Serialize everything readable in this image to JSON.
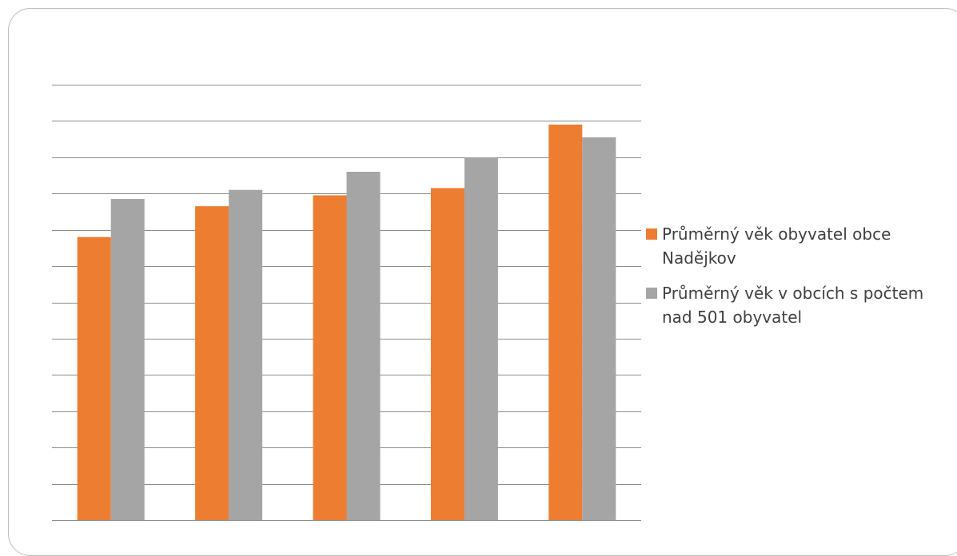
{
  "colors": {
    "series_1": "#ED7D31",
    "series_2": "#A5A5A5",
    "gridline": "#8c8c8c",
    "frame": "#bdbdbd"
  },
  "legend": {
    "placement": "right",
    "items": [
      {
        "label": "Průměrný věk obyvatel obce Nadějkov",
        "color": "#ED7D31"
      },
      {
        "label": "Průměrný věk v obcích s počtem nad 501 obyvatel",
        "color": "#A5A5A5"
      }
    ]
  },
  "chart_data": {
    "type": "bar",
    "title": "",
    "xlabel": "",
    "ylabel": "",
    "ylim": [
      0,
      12
    ],
    "grid": true,
    "gridline_count": 12,
    "categories": [
      "",
      "",
      "",
      "",
      ""
    ],
    "series": [
      {
        "name": "Průměrný věk obyvatel obce Nadějkov",
        "values": [
          7.8,
          8.65,
          8.95,
          9.15,
          10.9
        ]
      },
      {
        "name": "Průměrný věk v obcích s počtem nad 501 obyvatel",
        "values": [
          8.85,
          9.1,
          9.6,
          10.0,
          10.55
        ]
      }
    ]
  }
}
